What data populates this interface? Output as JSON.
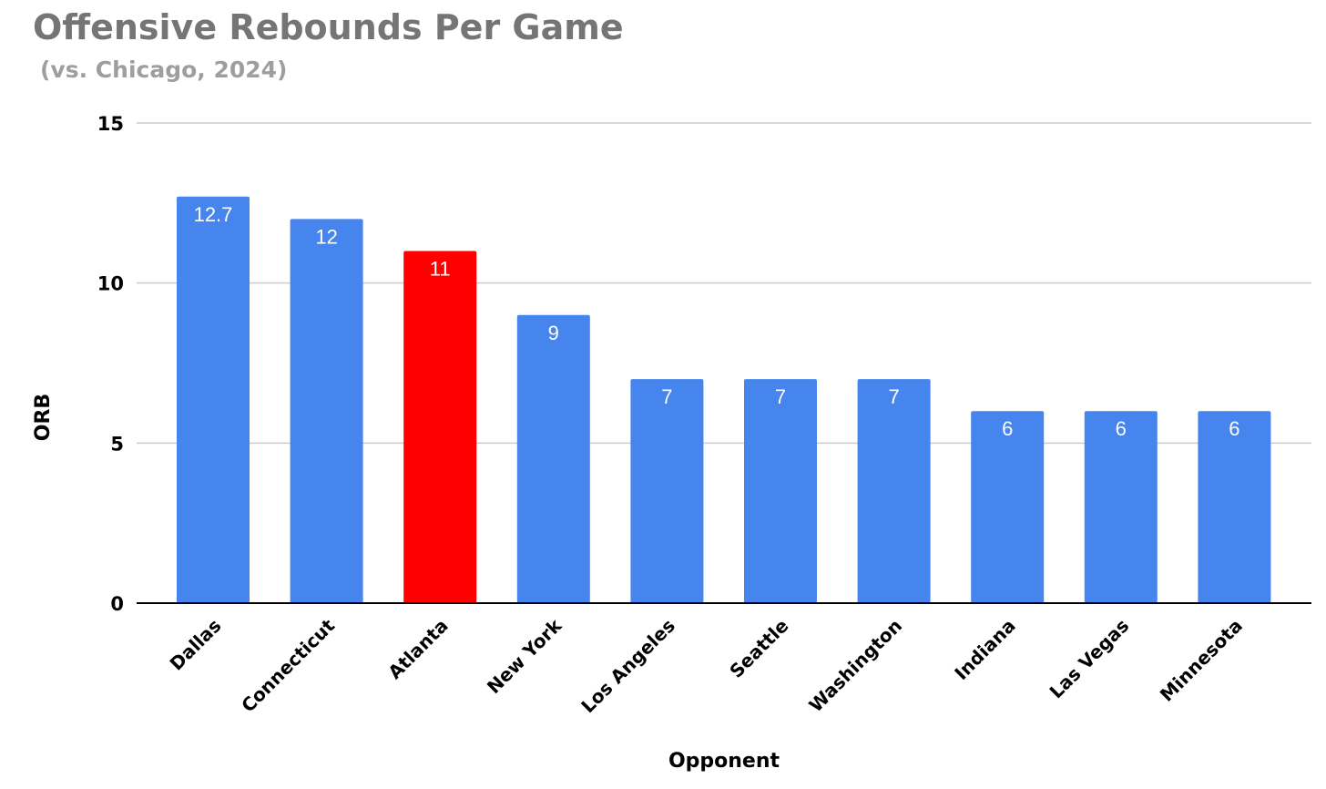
{
  "title": "Offensive Rebounds Per Game",
  "subtitle": "(vs. Chicago, 2024)",
  "colors": {
    "default_bar": "#4684ee",
    "highlight_bar": "#ff0000",
    "gridline": "#cccccc",
    "baseline": "#000000",
    "title": "#757575",
    "subtitle": "#9e9e9e"
  },
  "chart_data": {
    "type": "bar",
    "categories": [
      "Dallas",
      "Connecticut",
      "Atlanta",
      "New York",
      "Los Angeles",
      "Seattle",
      "Washington",
      "Indiana",
      "Las Vegas",
      "Minnesota"
    ],
    "values": [
      12.7,
      12,
      11,
      9,
      7,
      7,
      7,
      6,
      6,
      6
    ],
    "data_labels": [
      "12.7",
      "12",
      "11",
      "9",
      "7",
      "7",
      "7",
      "6",
      "6",
      "6"
    ],
    "highlight_category": "Atlanta",
    "xlabel": "Opponent",
    "ylabel": "ORB",
    "ylim": [
      0,
      15
    ],
    "yticks": [
      0,
      5,
      10,
      15
    ],
    "grid": true,
    "legend": "none"
  }
}
